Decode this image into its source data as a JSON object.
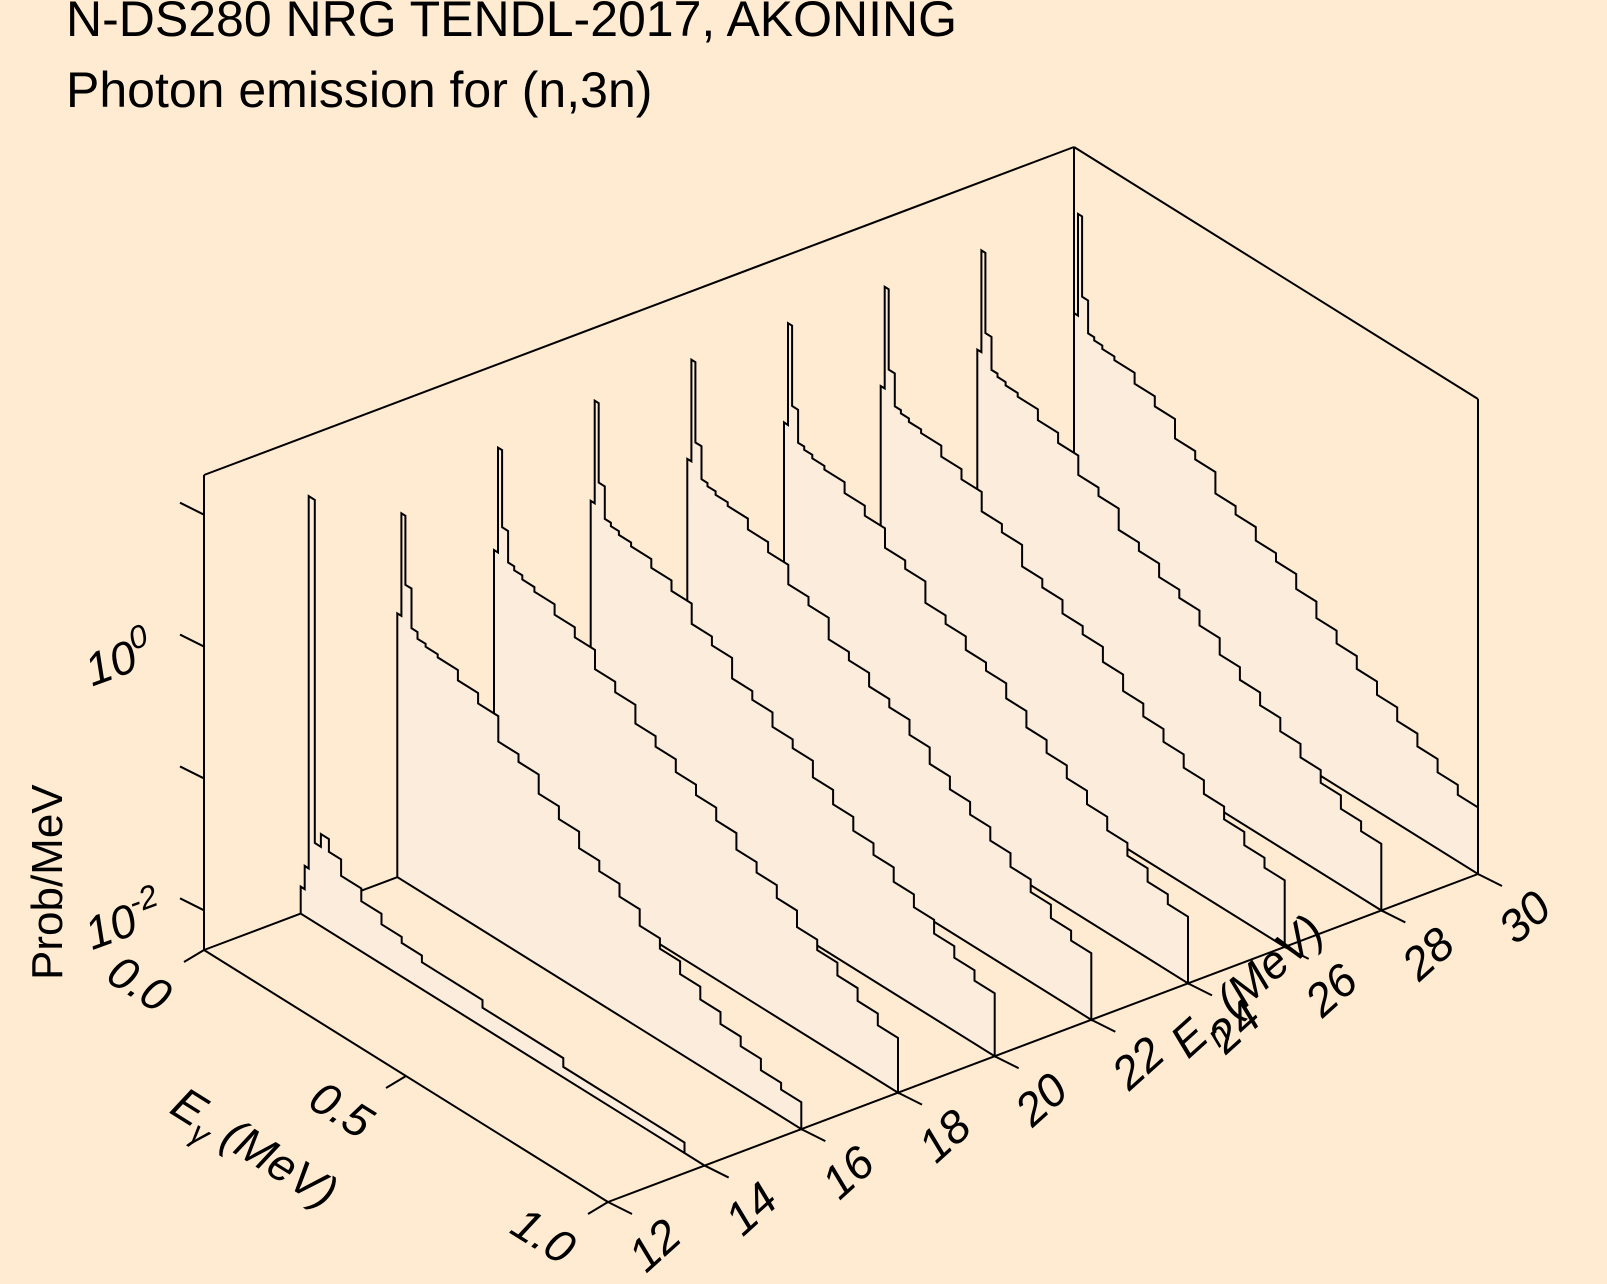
{
  "title": "N-DS280 NRG TENDL-2017, AKONING",
  "subtitle": "Photon emission for (n,3n)",
  "colors": {
    "background": "#ffebd1",
    "spectrum_fill": "#fbecdb",
    "line": "#000000"
  },
  "chart_data": {
    "type": "area",
    "view": "3d-waterfall",
    "title": "N-DS280 NRG TENDL-2017, AKONING",
    "subtitle": "Photon emission for (n,3n)",
    "x_axis": {
      "label_main": "E",
      "label_sub": "γ",
      "label_unit": " (MeV)",
      "ticks": [
        "0.0",
        "0.5",
        "1.0"
      ],
      "range": [
        0.0,
        1.0
      ]
    },
    "y_axis": {
      "label_main": "E",
      "label_sub": "n",
      "label_unit": " (MeV)",
      "ticks": [
        "12",
        "14",
        "16",
        "18",
        "20",
        "22",
        "24",
        "26",
        "28",
        "30"
      ],
      "range": [
        12,
        30
      ]
    },
    "z_axis": {
      "label": "Prob/MeV",
      "scale": "log",
      "tick_labels": [
        {
          "base": "10",
          "exp": "-2"
        },
        {
          "base": "10",
          "exp": "0"
        }
      ],
      "range": [
        0.005,
        20
      ]
    },
    "grid": false,
    "legend": "none",
    "x_edges": [
      0.0,
      0.01,
      0.02,
      0.035,
      0.05,
      0.07,
      0.1,
      0.15,
      0.2,
      0.25,
      0.3,
      0.35,
      0.4,
      0.45,
      0.5,
      0.55,
      0.6,
      0.65,
      0.7,
      0.75,
      0.8,
      0.85,
      0.9,
      0.95,
      1.0
    ],
    "series": [
      {
        "En": 14,
        "values": [
          0.008,
          0.012,
          8.0,
          0.02,
          0.025,
          0.02,
          0.015,
          0.012,
          0.01,
          0.009,
          0.008,
          0.008,
          0.008,
          0.007,
          0.007,
          0.007,
          0.007,
          0.006,
          0.006,
          0.006,
          0.006,
          0.006,
          0.006,
          0.005
        ]
      },
      {
        "En": 16,
        "values": [
          0.5,
          3.0,
          0.9,
          0.45,
          0.4,
          0.38,
          0.36,
          0.3,
          0.25,
          0.16,
          0.14,
          0.1,
          0.08,
          0.06,
          0.05,
          0.04,
          0.03,
          0.025,
          0.02,
          0.016,
          0.013,
          0.011,
          0.009,
          0.008
        ]
      },
      {
        "En": 18,
        "values": [
          0.8,
          5.0,
          1.3,
          0.75,
          0.7,
          0.65,
          0.6,
          0.5,
          0.42,
          0.3,
          0.25,
          0.18,
          0.15,
          0.12,
          0.1,
          0.08,
          0.06,
          0.05,
          0.04,
          0.03,
          0.025,
          0.02,
          0.016,
          0.013
        ]
      },
      {
        "En": 20,
        "values": [
          1.0,
          6.0,
          1.5,
          0.85,
          0.8,
          0.75,
          0.7,
          0.6,
          0.5,
          0.35,
          0.3,
          0.21,
          0.18,
          0.14,
          0.12,
          0.09,
          0.07,
          0.055,
          0.045,
          0.035,
          0.028,
          0.022,
          0.018,
          0.015
        ]
      },
      {
        "En": 22,
        "values": [
          1.1,
          6.5,
          1.6,
          0.9,
          0.85,
          0.8,
          0.75,
          0.62,
          0.52,
          0.37,
          0.32,
          0.22,
          0.19,
          0.15,
          0.13,
          0.1,
          0.075,
          0.06,
          0.048,
          0.038,
          0.03,
          0.024,
          0.019,
          0.016
        ]
      },
      {
        "En": 24,
        "values": [
          1.1,
          6.5,
          1.6,
          0.9,
          0.85,
          0.8,
          0.75,
          0.62,
          0.52,
          0.37,
          0.32,
          0.22,
          0.19,
          0.15,
          0.13,
          0.1,
          0.075,
          0.06,
          0.048,
          0.038,
          0.03,
          0.024,
          0.019,
          0.016
        ]
      },
      {
        "En": 26,
        "values": [
          1.1,
          6.5,
          1.6,
          0.9,
          0.85,
          0.8,
          0.75,
          0.62,
          0.52,
          0.37,
          0.32,
          0.22,
          0.19,
          0.15,
          0.13,
          0.1,
          0.075,
          0.06,
          0.048,
          0.038,
          0.03,
          0.024,
          0.019,
          0.016
        ]
      },
      {
        "En": 28,
        "values": [
          1.1,
          6.5,
          1.6,
          0.9,
          0.85,
          0.8,
          0.75,
          0.62,
          0.52,
          0.37,
          0.32,
          0.22,
          0.19,
          0.15,
          0.13,
          0.1,
          0.075,
          0.06,
          0.048,
          0.038,
          0.03,
          0.024,
          0.019,
          0.016
        ]
      },
      {
        "En": 30,
        "values": [
          1.1,
          6.5,
          1.6,
          0.9,
          0.85,
          0.8,
          0.75,
          0.62,
          0.52,
          0.37,
          0.32,
          0.22,
          0.19,
          0.15,
          0.13,
          0.1,
          0.075,
          0.06,
          0.048,
          0.038,
          0.03,
          0.024,
          0.019,
          0.016
        ]
      }
    ]
  }
}
